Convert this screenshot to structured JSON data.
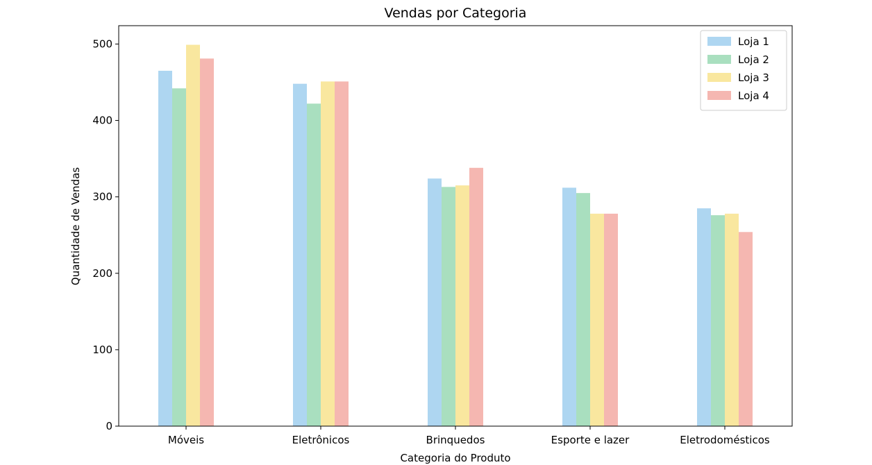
{
  "chart_data": {
    "type": "bar",
    "title": "Vendas por Categoria",
    "xlabel": "Categoria do Produto",
    "ylabel": "Quantidade de Vendas",
    "categories": [
      "Móveis",
      "Eletrônicos",
      "Brinquedos",
      "Esporte e lazer",
      "Eletrodomésticos"
    ],
    "ylim": [
      0,
      524
    ],
    "yticks": [
      0,
      100,
      200,
      300,
      400,
      500
    ],
    "grid": false,
    "legend_position": "top-right",
    "series": [
      {
        "name": "Loja 1",
        "color": "#aed6f1",
        "values": [
          465,
          448,
          324,
          312,
          285
        ]
      },
      {
        "name": "Loja 2",
        "color": "#a9dfbf",
        "values": [
          442,
          422,
          313,
          305,
          276
        ]
      },
      {
        "name": "Loja 3",
        "color": "#f9e79f",
        "values": [
          499,
          451,
          315,
          278,
          278
        ]
      },
      {
        "name": "Loja 4",
        "color": "#f5b7b1",
        "values": [
          481,
          451,
          338,
          278,
          254
        ]
      }
    ]
  }
}
